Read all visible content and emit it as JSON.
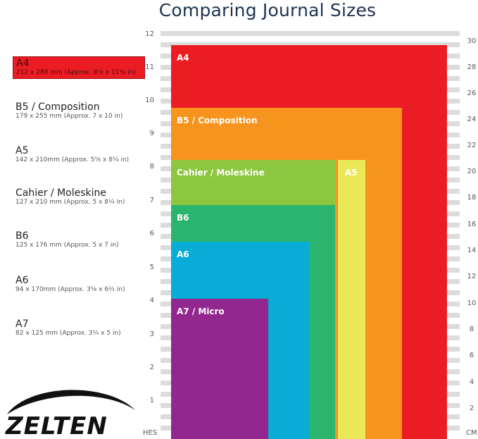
{
  "title": "Comparing Journal Sizes",
  "legend": [
    {
      "name": "A4",
      "dims": "212 x 289 mm (Approx. 8⅝ x 11⅜ in)",
      "highlight": true
    },
    {
      "name": "B5 / Composition",
      "dims": "179 x 255 mm (Approx. 7 x 10 in)"
    },
    {
      "name": "A5",
      "dims": "142 x 210mm (Approx. 5⅝ x 8¼ in)"
    },
    {
      "name": "Cahier / Moleskine",
      "dims": "127 x 210 mm (Approx. 5 x 8¼ in)"
    },
    {
      "name": "B6",
      "dims": "125 x 176 mm (Approx. 5 x 7 in)"
    },
    {
      "name": "A6",
      "dims": "94 x 170mm (Approx. 3⅝ x 6⅔ in)"
    },
    {
      "name": "A7",
      "dims": "82 x 125 mm (Approx. 3¼ x 5 in)"
    }
  ],
  "rect_labels": {
    "a4": "A4",
    "b5": "B5 / Composition",
    "cahier": "Cahier / Moleskine",
    "a5": "A5",
    "b6": "B6",
    "a6": "A6",
    "a7": "A7 / Micro"
  },
  "colors": {
    "a4": "#ec1c24",
    "b5": "#f7941d",
    "cahier": "#8dc63f",
    "a5": "#eae856",
    "b6": "#2bb46d",
    "a6": "#08acd6",
    "a7": "#92278f"
  },
  "inch_ticks": [
    "12",
    "11",
    "10",
    "9",
    "8",
    "7",
    "6",
    "5",
    "4",
    "3",
    "2",
    "1"
  ],
  "cm_ticks": [
    "30",
    "28",
    "26",
    "24",
    "22",
    "20",
    "18",
    "16",
    "14",
    "12",
    "10",
    "8",
    "6",
    "4",
    "2"
  ],
  "inch_unit": "HES",
  "cm_unit": "CM",
  "brand": "ZELTEN"
}
